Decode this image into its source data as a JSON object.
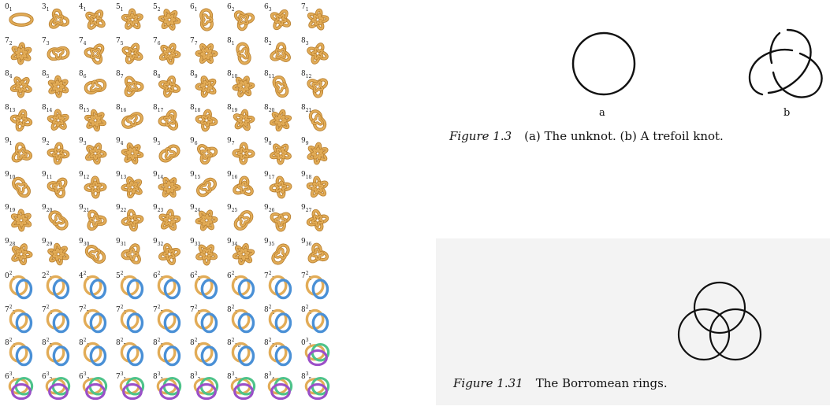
{
  "knot_table": {
    "colors": {
      "gold": "#e2ac57",
      "gold_dark": "#b57c2c",
      "blue": "#4a90d6",
      "purple": "#9b4fc8",
      "green": "#4ec38a"
    },
    "rows": [
      [
        {
          "n": "0",
          "s": "1",
          "c": "g"
        },
        {
          "n": "3",
          "s": "1",
          "c": "g"
        },
        {
          "n": "4",
          "s": "1",
          "c": "g"
        },
        {
          "n": "5",
          "s": "1",
          "c": "g"
        },
        {
          "n": "5",
          "s": "2",
          "c": "g"
        },
        {
          "n": "6",
          "s": "1",
          "c": "g"
        },
        {
          "n": "6",
          "s": "2",
          "c": "g"
        },
        {
          "n": "6",
          "s": "3",
          "c": "g"
        },
        {
          "n": "7",
          "s": "1",
          "c": "g"
        }
      ],
      [
        {
          "n": "7",
          "s": "2",
          "c": "g"
        },
        {
          "n": "7",
          "s": "3",
          "c": "g"
        },
        {
          "n": "7",
          "s": "4",
          "c": "g"
        },
        {
          "n": "7",
          "s": "5",
          "c": "g"
        },
        {
          "n": "7",
          "s": "6",
          "c": "g"
        },
        {
          "n": "7",
          "s": "7",
          "c": "g"
        },
        {
          "n": "8",
          "s": "1",
          "c": "g"
        },
        {
          "n": "8",
          "s": "2",
          "c": "g"
        },
        {
          "n": "8",
          "s": "3",
          "c": "g"
        }
      ],
      [
        {
          "n": "8",
          "s": "4",
          "c": "g"
        },
        {
          "n": "8",
          "s": "5",
          "c": "g"
        },
        {
          "n": "8",
          "s": "6",
          "c": "g"
        },
        {
          "n": "8",
          "s": "7",
          "c": "g"
        },
        {
          "n": "8",
          "s": "8",
          "c": "g"
        },
        {
          "n": "8",
          "s": "9",
          "c": "g"
        },
        {
          "n": "8",
          "s": "10",
          "c": "g"
        },
        {
          "n": "8",
          "s": "11",
          "c": "g"
        },
        {
          "n": "8",
          "s": "12",
          "c": "g"
        }
      ],
      [
        {
          "n": "8",
          "s": "13",
          "c": "g"
        },
        {
          "n": "8",
          "s": "14",
          "c": "g"
        },
        {
          "n": "8",
          "s": "15",
          "c": "g"
        },
        {
          "n": "8",
          "s": "16",
          "c": "g"
        },
        {
          "n": "8",
          "s": "17",
          "c": "g"
        },
        {
          "n": "8",
          "s": "18",
          "c": "g"
        },
        {
          "n": "8",
          "s": "19",
          "c": "g"
        },
        {
          "n": "8",
          "s": "20",
          "c": "g"
        },
        {
          "n": "8",
          "s": "21",
          "c": "g"
        }
      ],
      [
        {
          "n": "9",
          "s": "1",
          "c": "g"
        },
        {
          "n": "9",
          "s": "2",
          "c": "g"
        },
        {
          "n": "9",
          "s": "3",
          "c": "g"
        },
        {
          "n": "9",
          "s": "4",
          "c": "g"
        },
        {
          "n": "9",
          "s": "5",
          "c": "g"
        },
        {
          "n": "9",
          "s": "6",
          "c": "g"
        },
        {
          "n": "9",
          "s": "7",
          "c": "g"
        },
        {
          "n": "9",
          "s": "8",
          "c": "g"
        },
        {
          "n": "9",
          "s": "9",
          "c": "g"
        }
      ],
      [
        {
          "n": "9",
          "s": "10",
          "c": "g"
        },
        {
          "n": "9",
          "s": "11",
          "c": "g"
        },
        {
          "n": "9",
          "s": "12",
          "c": "g"
        },
        {
          "n": "9",
          "s": "13",
          "c": "g"
        },
        {
          "n": "9",
          "s": "14",
          "c": "g"
        },
        {
          "n": "9",
          "s": "15",
          "c": "g"
        },
        {
          "n": "9",
          "s": "16",
          "c": "g"
        },
        {
          "n": "9",
          "s": "17",
          "c": "g"
        },
        {
          "n": "9",
          "s": "18",
          "c": "g"
        }
      ],
      [
        {
          "n": "9",
          "s": "19",
          "c": "g"
        },
        {
          "n": "9",
          "s": "20",
          "c": "g"
        },
        {
          "n": "9",
          "s": "21",
          "c": "g"
        },
        {
          "n": "9",
          "s": "22",
          "c": "g"
        },
        {
          "n": "9",
          "s": "23",
          "c": "g"
        },
        {
          "n": "9",
          "s": "24",
          "c": "g"
        },
        {
          "n": "9",
          "s": "25",
          "c": "g"
        },
        {
          "n": "9",
          "s": "26",
          "c": "g"
        },
        {
          "n": "9",
          "s": "27",
          "c": "g"
        }
      ],
      [
        {
          "n": "9",
          "s": "28",
          "c": "g"
        },
        {
          "n": "9",
          "s": "29",
          "c": "g"
        },
        {
          "n": "9",
          "s": "30",
          "c": "g"
        },
        {
          "n": "9",
          "s": "31",
          "c": "g"
        },
        {
          "n": "9",
          "s": "32",
          "c": "g"
        },
        {
          "n": "9",
          "s": "33",
          "c": "g"
        },
        {
          "n": "9",
          "s": "34",
          "c": "g"
        },
        {
          "n": "9",
          "s": "35",
          "c": "g"
        },
        {
          "n": "9",
          "s": "36",
          "c": "g"
        }
      ],
      [
        {
          "n": "0",
          "s": "1",
          "p": "2",
          "c": "gb"
        },
        {
          "n": "2",
          "s": "1",
          "p": "2",
          "c": "gb"
        },
        {
          "n": "4",
          "s": "1",
          "p": "2",
          "c": "gb"
        },
        {
          "n": "5",
          "s": "1",
          "p": "2",
          "c": "gb"
        },
        {
          "n": "6",
          "s": "1",
          "p": "2",
          "c": "gb"
        },
        {
          "n": "6",
          "s": "2",
          "p": "2",
          "c": "gb"
        },
        {
          "n": "6",
          "s": "3",
          "p": "2",
          "c": "gb"
        },
        {
          "n": "7",
          "s": "1",
          "p": "2",
          "c": "gb"
        },
        {
          "n": "7",
          "s": "2",
          "p": "2",
          "c": "gb"
        }
      ],
      [
        {
          "n": "7",
          "s": "3",
          "p": "2",
          "c": "gb"
        },
        {
          "n": "7",
          "s": "4",
          "p": "2",
          "c": "gb"
        },
        {
          "n": "7",
          "s": "5",
          "p": "2",
          "c": "gb"
        },
        {
          "n": "7",
          "s": "6",
          "p": "2",
          "c": "gb"
        },
        {
          "n": "7",
          "s": "7",
          "p": "2",
          "c": "gb"
        },
        {
          "n": "7",
          "s": "8",
          "p": "2",
          "c": "gb"
        },
        {
          "n": "8",
          "s": "1",
          "p": "2",
          "c": "gb"
        },
        {
          "n": "8",
          "s": "2",
          "p": "2",
          "c": "gb"
        },
        {
          "n": "8",
          "s": "3",
          "p": "2",
          "c": "gb"
        }
      ],
      [
        {
          "n": "8",
          "s": "4",
          "p": "2",
          "c": "gb"
        },
        {
          "n": "8",
          "s": "5",
          "p": "2",
          "c": "gb"
        },
        {
          "n": "8",
          "s": "6",
          "p": "2",
          "c": "gb"
        },
        {
          "n": "8",
          "s": "7",
          "p": "2",
          "c": "gb"
        },
        {
          "n": "8",
          "s": "8",
          "p": "2",
          "c": "gb"
        },
        {
          "n": "8",
          "s": "9",
          "p": "2",
          "c": "gb"
        },
        {
          "n": "8",
          "s": "10",
          "p": "2",
          "c": "gb"
        },
        {
          "n": "8",
          "s": "11",
          "p": "2",
          "c": "gb"
        },
        {
          "n": "0",
          "s": "1",
          "p": "3",
          "c": "gbp"
        }
      ],
      [
        {
          "n": "6",
          "s": "1",
          "p": "3",
          "c": "gbp"
        },
        {
          "n": "6",
          "s": "2",
          "p": "3",
          "c": "gbp"
        },
        {
          "n": "6",
          "s": "3",
          "p": "3",
          "c": "gbp"
        },
        {
          "n": "7",
          "s": "1",
          "p": "3",
          "c": "gbp"
        },
        {
          "n": "8",
          "s": "1",
          "p": "3",
          "c": "gbp"
        },
        {
          "n": "8",
          "s": "2",
          "p": "3",
          "c": "gbp"
        },
        {
          "n": "8",
          "s": "3",
          "p": "3",
          "c": "gbp"
        },
        {
          "n": "8",
          "s": "4",
          "p": "3",
          "c": "gbp"
        },
        {
          "n": "8",
          "s": "5",
          "p": "3",
          "c": "gbp"
        }
      ]
    ]
  },
  "figure_1_3": {
    "label_a": "a",
    "label_b": "b",
    "caption_number": "Figure 1.3",
    "caption_text": "(a) The unknot. (b) A trefoil knot."
  },
  "figure_1_31": {
    "caption_number": "Figure 1.31",
    "caption_text": "The Borromean rings."
  }
}
